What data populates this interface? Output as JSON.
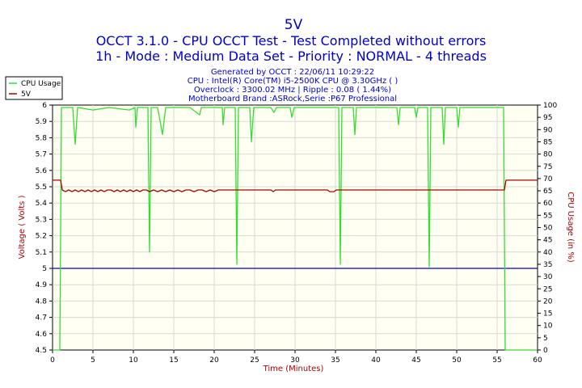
{
  "header": {
    "title": "5V",
    "line1": "OCCT 3.1.0 - CPU OCCT Test - Test Completed without errors",
    "line2": "1h - Mode : Medium Data Set - Priority : NORMAL - 4 threads",
    "info1": "Generated by OCCT : 22/06/11 10:29:22",
    "info2": "CPU : Intel(R) Core(TM) i5-2500K CPU @ 3.30GHz (  )",
    "info3": "Overclock : 3300.02 MHz | Ripple : 0.08 ( 1.44%)",
    "info4": "Motherboard Brand :ASRock,Serie :P67 Professional"
  },
  "colors": {
    "title": "#0000cc",
    "axis_label": "#aa0000",
    "plot_bg": "#fffff2",
    "cpu_line": "#33dd33",
    "voltage_line": "#aa0000",
    "reference_line": "#0000dd"
  },
  "chart_data": {
    "type": "line",
    "xlabel": "Time (Minutes)",
    "ylabel_left": "Voltage ( Volts )",
    "ylabel_right": "CPU Usage (in %)",
    "xlim": [
      0,
      60
    ],
    "ylim_left": [
      4.5,
      6
    ],
    "ylim_right": [
      0,
      100
    ],
    "x_ticks": [
      "0",
      "5",
      "10",
      "15",
      "20",
      "25",
      "30",
      "35",
      "40",
      "45",
      "50",
      "55",
      "60"
    ],
    "y_ticks_left": [
      "4.5",
      "4.6",
      "4.7",
      "4.8",
      "4.9",
      "5",
      "5.1",
      "5.2",
      "5.3",
      "5.4",
      "5.5",
      "5.6",
      "5.7",
      "5.8",
      "5.9",
      "6"
    ],
    "y_ticks_right": [
      "0",
      "5",
      "10",
      "15",
      "20",
      "25",
      "30",
      "35",
      "40",
      "45",
      "50",
      "55",
      "60",
      "65",
      "70",
      "75",
      "80",
      "85",
      "90",
      "95",
      "100"
    ],
    "grid": true,
    "legend_position": "top-left",
    "reference_line_value": 5.0,
    "series": [
      {
        "name": "CPU Usage",
        "axis": "right",
        "points": [
          [
            0,
            0
          ],
          [
            0.9,
            0
          ],
          [
            1.1,
            99
          ],
          [
            1.5,
            99
          ],
          [
            2.2,
            99
          ],
          [
            2.5,
            99
          ],
          [
            2.8,
            84
          ],
          [
            3.1,
            99
          ],
          [
            5,
            98
          ],
          [
            7,
            99
          ],
          [
            9.5,
            98
          ],
          [
            10.2,
            99
          ],
          [
            10.3,
            91
          ],
          [
            10.5,
            99
          ],
          [
            11.8,
            99
          ],
          [
            12,
            40
          ],
          [
            12.2,
            99
          ],
          [
            13,
            99
          ],
          [
            13.6,
            88
          ],
          [
            14,
            99
          ],
          [
            17,
            99
          ],
          [
            18.2,
            96
          ],
          [
            18.4,
            99
          ],
          [
            21,
            99
          ],
          [
            21.1,
            92
          ],
          [
            21.3,
            99
          ],
          [
            22.6,
            99
          ],
          [
            22.8,
            35
          ],
          [
            23,
            99
          ],
          [
            24.4,
            99
          ],
          [
            24.6,
            85
          ],
          [
            24.9,
            99
          ],
          [
            27,
            99
          ],
          [
            27.4,
            97
          ],
          [
            27.7,
            99
          ],
          [
            29.4,
            99
          ],
          [
            29.6,
            95
          ],
          [
            29.9,
            99
          ],
          [
            35.4,
            99
          ],
          [
            35.6,
            35
          ],
          [
            35.8,
            99
          ],
          [
            37.2,
            99
          ],
          [
            37.4,
            88
          ],
          [
            37.6,
            99
          ],
          [
            40,
            99
          ],
          [
            42.6,
            99
          ],
          [
            42.8,
            92
          ],
          [
            43,
            99
          ],
          [
            44.8,
            99
          ],
          [
            45,
            95
          ],
          [
            45.2,
            99
          ],
          [
            46.4,
            99
          ],
          [
            46.6,
            34
          ],
          [
            46.8,
            99
          ],
          [
            48.2,
            99
          ],
          [
            48.4,
            84
          ],
          [
            48.6,
            99
          ],
          [
            50,
            99
          ],
          [
            50.2,
            91
          ],
          [
            50.4,
            99
          ],
          [
            54,
            99
          ],
          [
            55.8,
            99
          ],
          [
            56,
            0
          ],
          [
            60,
            0
          ]
        ]
      },
      {
        "name": "5V",
        "axis": "left",
        "points": [
          [
            0,
            5.54
          ],
          [
            1.0,
            5.54
          ],
          [
            1.2,
            5.48
          ],
          [
            1.6,
            5.47
          ],
          [
            2.0,
            5.48
          ],
          [
            2.4,
            5.47
          ],
          [
            2.8,
            5.48
          ],
          [
            3.2,
            5.47
          ],
          [
            3.6,
            5.48
          ],
          [
            4.0,
            5.47
          ],
          [
            4.4,
            5.48
          ],
          [
            4.8,
            5.47
          ],
          [
            5.2,
            5.48
          ],
          [
            5.6,
            5.47
          ],
          [
            6.0,
            5.48
          ],
          [
            6.4,
            5.47
          ],
          [
            6.8,
            5.48
          ],
          [
            7.2,
            5.48
          ],
          [
            7.6,
            5.47
          ],
          [
            8.0,
            5.48
          ],
          [
            8.4,
            5.47
          ],
          [
            8.8,
            5.48
          ],
          [
            9.2,
            5.47
          ],
          [
            9.6,
            5.48
          ],
          [
            10.0,
            5.47
          ],
          [
            10.4,
            5.48
          ],
          [
            10.8,
            5.47
          ],
          [
            11.2,
            5.48
          ],
          [
            11.6,
            5.48
          ],
          [
            12.0,
            5.47
          ],
          [
            12.5,
            5.48
          ],
          [
            13.0,
            5.47
          ],
          [
            13.5,
            5.48
          ],
          [
            14.0,
            5.47
          ],
          [
            14.5,
            5.48
          ],
          [
            15.0,
            5.47
          ],
          [
            15.5,
            5.48
          ],
          [
            16.0,
            5.47
          ],
          [
            16.5,
            5.48
          ],
          [
            17.0,
            5.48
          ],
          [
            17.5,
            5.47
          ],
          [
            18.0,
            5.48
          ],
          [
            18.5,
            5.48
          ],
          [
            19.0,
            5.47
          ],
          [
            19.5,
            5.48
          ],
          [
            20.0,
            5.47
          ],
          [
            20.5,
            5.48
          ],
          [
            27.0,
            5.48
          ],
          [
            27.3,
            5.47
          ],
          [
            27.6,
            5.48
          ],
          [
            34.0,
            5.48
          ],
          [
            34.3,
            5.47
          ],
          [
            34.8,
            5.47
          ],
          [
            35.1,
            5.48
          ],
          [
            55.9,
            5.48
          ],
          [
            56.1,
            5.54
          ],
          [
            60,
            5.54
          ]
        ]
      }
    ]
  }
}
